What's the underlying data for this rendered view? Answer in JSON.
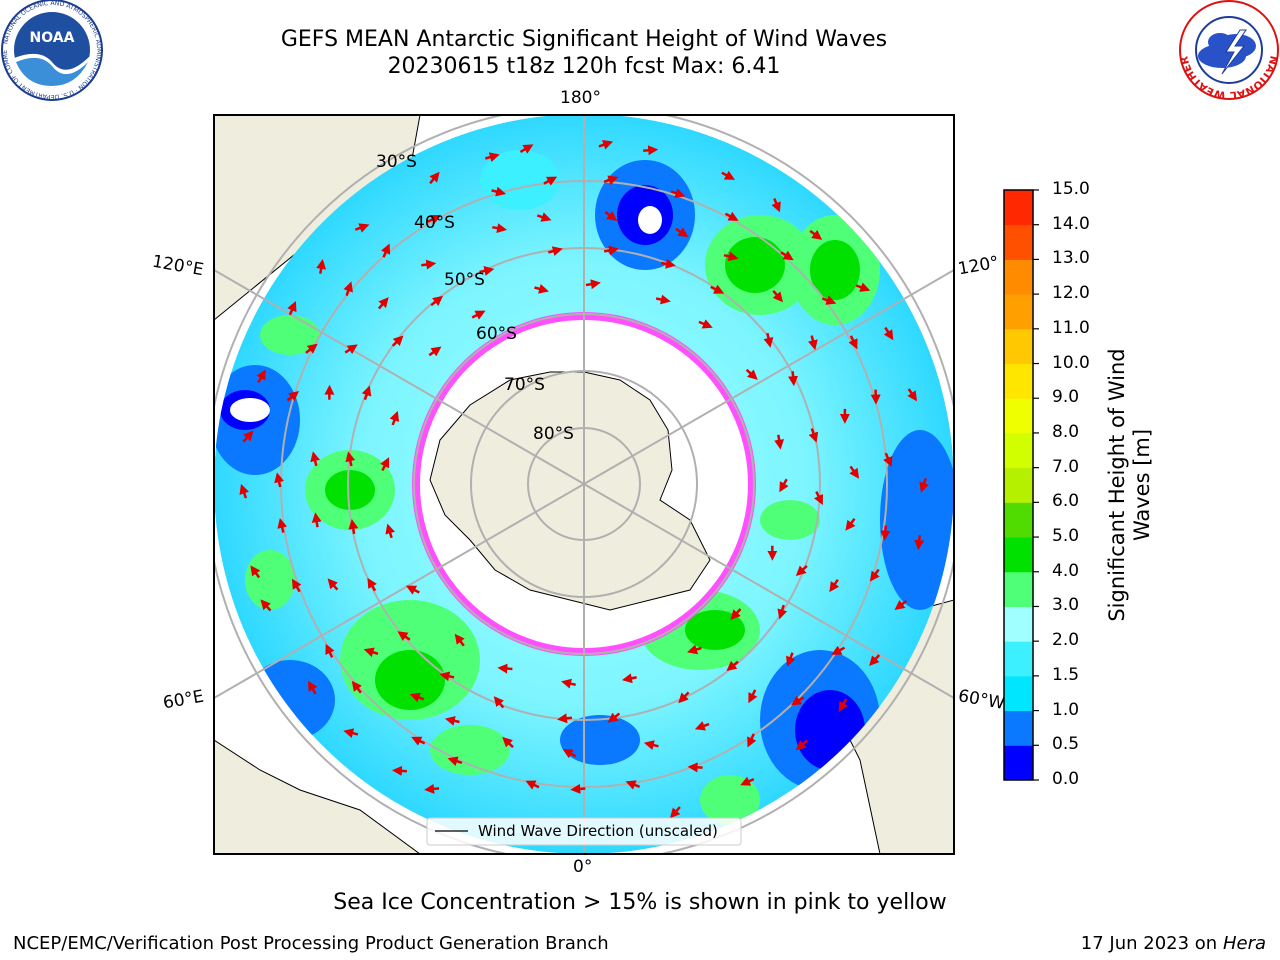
{
  "header": {
    "title_line1": "GEFS MEAN Antarctic Significant Height of Wind Waves",
    "title_line2": "20230615 t18z 120h fcst   Max: 6.41"
  },
  "map": {
    "longitude_labels": [
      "180°",
      "120°E",
      "120°",
      "60°E",
      "60°W",
      "0°"
    ],
    "latitude_labels": [
      "30°S",
      "40°S",
      "50°S",
      "60°S",
      "70°S",
      "80°S"
    ],
    "legend_label": "Wind Wave Direction (unscaled)"
  },
  "colorbar": {
    "label_line1": "Significant Height of Wind",
    "label_line2": "Waves [m]",
    "ticks": [
      "0.0",
      "0.5",
      "1.0",
      "1.5",
      "2.0",
      "3.0",
      "4.0",
      "5.0",
      "6.0",
      "7.0",
      "8.0",
      "9.0",
      "10.0",
      "11.0",
      "12.0",
      "13.0",
      "14.0",
      "15.0"
    ],
    "colors": [
      "#0000ff",
      "#0a78ff",
      "#00e6ff",
      "#3cf0ff",
      "#a0ffff",
      "#50ff78",
      "#00e100",
      "#50dc00",
      "#b4f000",
      "#d2ff00",
      "#f0ff00",
      "#ffe600",
      "#ffc800",
      "#ffa000",
      "#ff8c00",
      "#ff5000",
      "#ff2800",
      "#ff0000"
    ]
  },
  "note": "Sea Ice Concentration > 15% is shown in pink to yellow",
  "footer": {
    "left": "NCEP/EMC/Verification Post Processing Product Generation Branch",
    "right_date": "17 Jun 2023 on",
    "right_host": "Hera"
  },
  "logos": {
    "noaa_text": "NOAA",
    "nws_ring_text": "NATIONAL WEATHER SERVICE"
  }
}
